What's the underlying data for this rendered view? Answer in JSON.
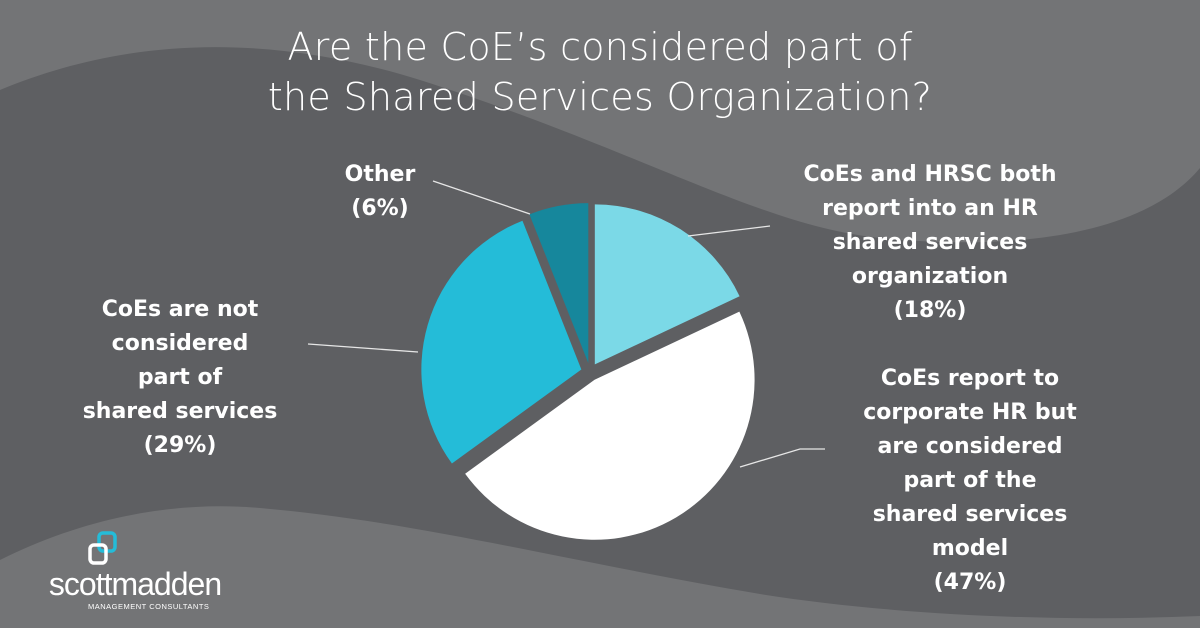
{
  "title": {
    "line1": "Are the CoE’s considered part of",
    "line2": "the Shared Services Organization?"
  },
  "colors": {
    "background_dark": "#5e5f62",
    "background_light": "#737476",
    "slice_hrsc": "#7bd9e7",
    "slice_corporate": "#ffffff",
    "slice_not_considered": "#24bcd8",
    "slice_other": "#16879c",
    "text": "#ffffff"
  },
  "labels": {
    "other": {
      "lines": [
        "Other",
        "(6%)"
      ]
    },
    "hrsc": {
      "lines": [
        "CoEs and HRSC both",
        "report into an HR",
        "shared services",
        "organization",
        "(18%)"
      ]
    },
    "corporate": {
      "lines": [
        "CoEs report to",
        "corporate HR but",
        "are considered",
        "part of the",
        "shared services",
        "model",
        "(47%)"
      ]
    },
    "not_considered": {
      "lines": [
        "CoEs are not",
        "considered",
        "part of",
        "shared services",
        "(29%)"
      ]
    }
  },
  "logo": {
    "wordmark": "scottmadden",
    "tagline": "MANAGEMENT CONSULTANTS"
  },
  "chart_data": {
    "type": "pie",
    "title": "Are the CoE’s considered part of the Shared Services Organization?",
    "categories": [
      "CoEs and HRSC both report into an HR shared services organization",
      "CoEs report to corporate HR but are considered part of the shared services model",
      "CoEs are not considered part of shared services",
      "Other"
    ],
    "values": [
      18,
      47,
      29,
      6
    ],
    "unit": "%",
    "colors": [
      "#7bd9e7",
      "#ffffff",
      "#24bcd8",
      "#16879c"
    ],
    "start_angle": "12 o'clock",
    "direction": "clockwise",
    "exploded": true,
    "legend": "none (callout labels with leader lines)"
  }
}
